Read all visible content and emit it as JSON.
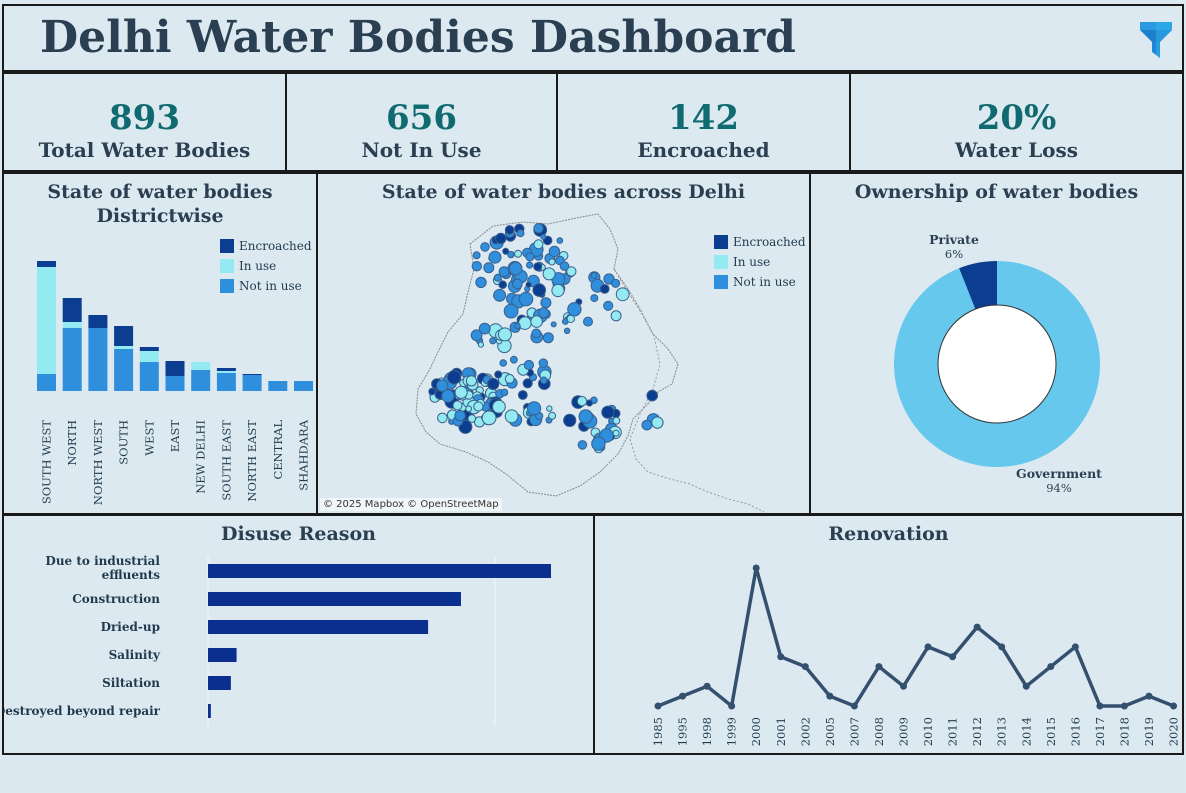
{
  "header": {
    "title": "Delhi Water Bodies Dashboard",
    "filter_icon": "filter-icon"
  },
  "kpis": [
    {
      "value": "893",
      "label": "Total Water Bodies"
    },
    {
      "value": "656",
      "label": "Not In Use"
    },
    {
      "value": "142",
      "label": "Encroached"
    },
    {
      "value": "20%",
      "label": "Water Loss"
    }
  ],
  "colors": {
    "encroached": "#0b3d91",
    "in_use": "#93eaf0",
    "not_in_use": "#2f8fdc",
    "private": "#0b3d91",
    "government": "#65c8ec",
    "disuse_bar": "#0b2f8f",
    "renovation_line": "#34506f"
  },
  "district_panel": {
    "title_line1": "State of water bodies",
    "title_line2": "Districtwise",
    "legend": [
      "Encroached",
      "In use",
      "Not in use"
    ]
  },
  "map_panel": {
    "title": "State of water bodies across Delhi",
    "legend": [
      "Encroached",
      "In use",
      "Not in use"
    ],
    "copyright": "© 2025 Mapbox © OpenStreetMap"
  },
  "ownership_panel": {
    "title": "Ownership of water bodies"
  },
  "disuse_panel": {
    "title": "Disuse Reason"
  },
  "renovation_panel": {
    "title": "Renovation"
  },
  "chart_data": [
    {
      "type": "bar",
      "stacked": true,
      "title": "State of water bodies Districtwise",
      "categories": [
        "SOUTH WEST",
        "NORTH",
        "NORTH WEST",
        "SOUTH",
        "WEST",
        "EAST",
        "NEW DELHI",
        "SOUTH EAST",
        "NORTH EAST",
        "CENTRAL",
        "SHAHDARA"
      ],
      "series": [
        {
          "name": "Not in use",
          "values": [
            17,
            63,
            63,
            42,
            29,
            15,
            21,
            18,
            16,
            10,
            10
          ]
        },
        {
          "name": "In use",
          "values": [
            107,
            6,
            0,
            3,
            11,
            0,
            8,
            2,
            0,
            0,
            0
          ]
        },
        {
          "name": "Encroached",
          "values": [
            6,
            24,
            13,
            20,
            4,
            15,
            0,
            3,
            1,
            0,
            0
          ]
        }
      ],
      "ylim": [
        0,
        135
      ],
      "legend": "top-right"
    },
    {
      "type": "pie",
      "title": "Ownership of water bodies",
      "donut": true,
      "slices": [
        {
          "name": "Private",
          "value": 6,
          "label": "6%"
        },
        {
          "name": "Government",
          "value": 94,
          "label": "94%"
        }
      ]
    },
    {
      "type": "bar",
      "orientation": "horizontal",
      "title": "Disuse Reason",
      "categories": [
        "Due to industrial effluents",
        "Construction",
        "Dried-up",
        "Salinity",
        "Siltation",
        "Destroyed beyond repair"
      ],
      "values": [
        240,
        177,
        154,
        20,
        16,
        2
      ],
      "xlim": [
        0,
        300
      ]
    },
    {
      "type": "line",
      "title": "Renovation",
      "categories": [
        "1985",
        "1995",
        "1998",
        "1999",
        "2000",
        "2001",
        "2002",
        "2005",
        "2007",
        "2008",
        "2009",
        "2010",
        "2011",
        "2012",
        "2013",
        "2014",
        "2015",
        "2016",
        "2017",
        "2018",
        "2019",
        "2020"
      ],
      "values": [
        1,
        2,
        3,
        1,
        15,
        6,
        5,
        2,
        1,
        5,
        3,
        7,
        6,
        9,
        7,
        3,
        5,
        7,
        1,
        1,
        2,
        1
      ],
      "ylim": [
        0,
        15
      ]
    }
  ]
}
